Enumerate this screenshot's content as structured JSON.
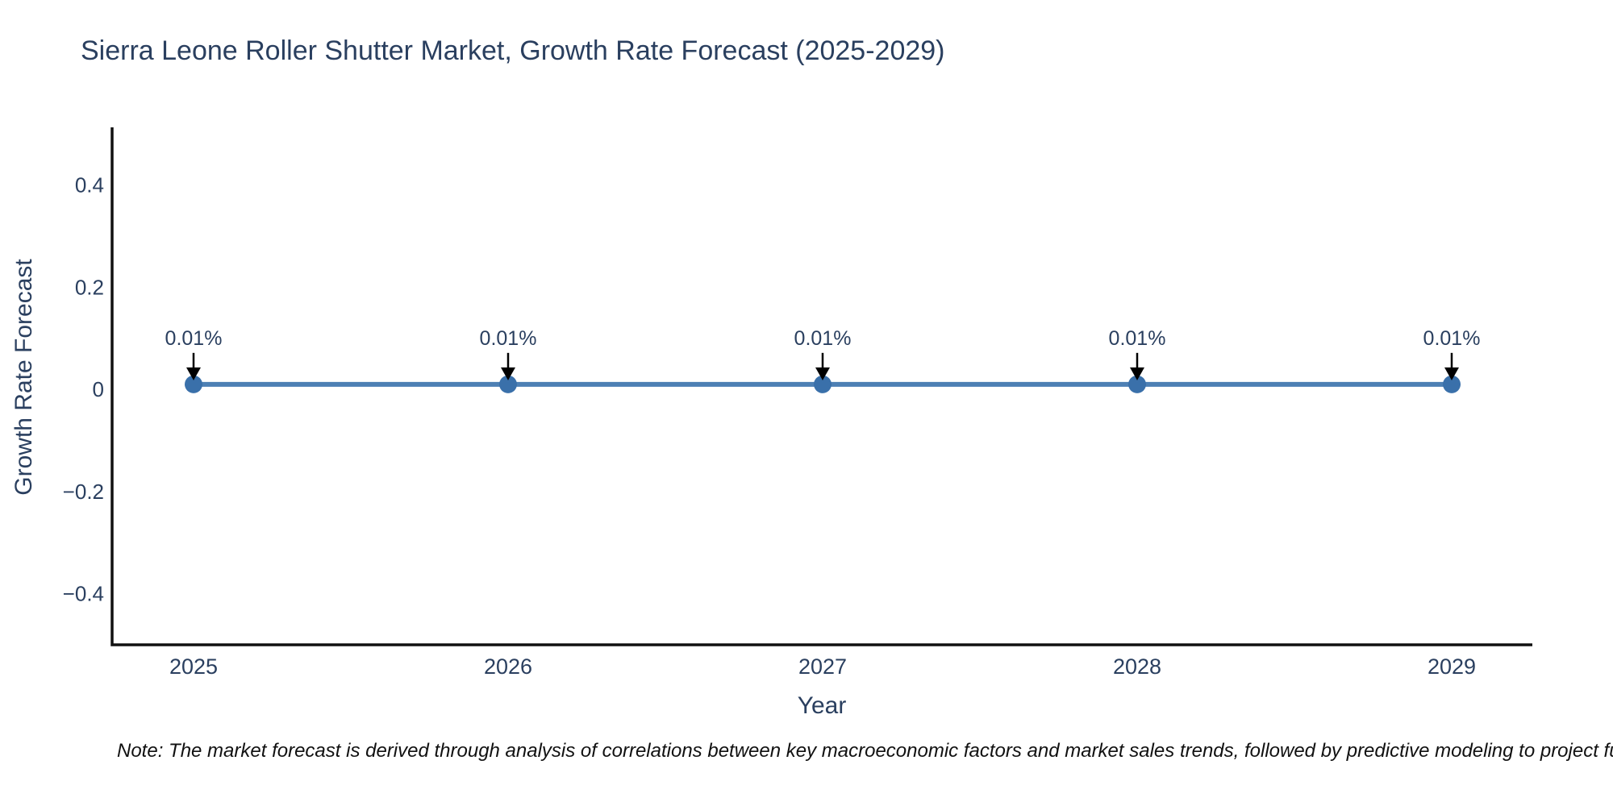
{
  "title": "Sierra Leone Roller Shutter Market, Growth Rate Forecast (2025-2029)",
  "note": "Note: The market forecast is derived through analysis of correlations between key macroeconomic factors and market sales trends, followed by predictive modeling to project future sa",
  "chart_data": {
    "type": "line",
    "title": "Sierra Leone Roller Shutter Market, Growth Rate Forecast (2025-2029)",
    "x": [
      2025,
      2026,
      2027,
      2028,
      2029
    ],
    "xticklabels": [
      "2025",
      "2026",
      "2027",
      "2028",
      "2029"
    ],
    "series": [
      {
        "name": "Growth Rate Forecast",
        "values": [
          0.01,
          0.01,
          0.01,
          0.01,
          0.01
        ]
      }
    ],
    "point_labels": [
      "0.01%",
      "0.01%",
      "0.01%",
      "0.01%",
      "0.01%"
    ],
    "xlabel": "Year",
    "ylabel": "Growth Rate Forecast",
    "ytick_values": [
      0.4,
      0.2,
      0,
      -0.2,
      -0.4
    ],
    "ytick_labels": [
      "0.4",
      "0.2",
      "0",
      "−0.2",
      "−0.4"
    ],
    "ylim": [
      -0.5,
      0.51
    ],
    "grid": false,
    "legend": "none",
    "colors": {
      "line": "#4d80b4",
      "marker": "#3a70aa",
      "arrow": "#000000",
      "text": "#2a3f5f",
      "axis": "#111111",
      "note_text": "#111111",
      "background": "#ffffff"
    }
  }
}
